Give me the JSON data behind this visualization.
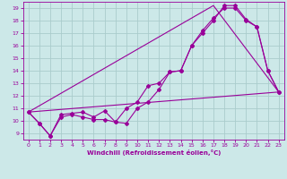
{
  "xlabel": "Windchill (Refroidissement éolien,°C)",
  "background_color": "#cce8e8",
  "line_color": "#990099",
  "grid_color": "#aacccc",
  "xlim": [
    -0.5,
    23.5
  ],
  "ylim": [
    8.5,
    19.5
  ],
  "xticks": [
    0,
    1,
    2,
    3,
    4,
    5,
    6,
    7,
    8,
    9,
    10,
    11,
    12,
    13,
    14,
    15,
    16,
    17,
    18,
    19,
    20,
    21,
    22,
    23
  ],
  "yticks": [
    9,
    10,
    11,
    12,
    13,
    14,
    15,
    16,
    17,
    18,
    19
  ],
  "line1_x": [
    0,
    1,
    2,
    3,
    4,
    5,
    6,
    7,
    8,
    9,
    10,
    11,
    12,
    13,
    14,
    15,
    16,
    17,
    18,
    19,
    20,
    21,
    22,
    23
  ],
  "line1_y": [
    10.7,
    9.8,
    8.8,
    10.5,
    10.6,
    10.7,
    10.3,
    10.8,
    9.9,
    11.0,
    11.5,
    12.8,
    13.0,
    13.9,
    14.0,
    16.0,
    17.0,
    18.0,
    19.2,
    19.2,
    18.1,
    17.5,
    14.0,
    12.3
  ],
  "line2_x": [
    0,
    1,
    2,
    3,
    4,
    5,
    6,
    7,
    8,
    9,
    10,
    11,
    12,
    13,
    14,
    15,
    16,
    17,
    18,
    19,
    20,
    21,
    22,
    23
  ],
  "line2_y": [
    10.7,
    9.8,
    8.8,
    10.3,
    10.5,
    10.3,
    10.1,
    10.1,
    9.9,
    9.8,
    11.0,
    11.5,
    12.5,
    13.9,
    14.0,
    16.0,
    17.2,
    18.2,
    19.0,
    19.0,
    18.0,
    17.5,
    14.0,
    12.3
  ],
  "line3_x": [
    0,
    23
  ],
  "line3_y": [
    10.7,
    12.3
  ],
  "line4_x": [
    0,
    17,
    23
  ],
  "line4_y": [
    10.7,
    19.2,
    12.3
  ]
}
